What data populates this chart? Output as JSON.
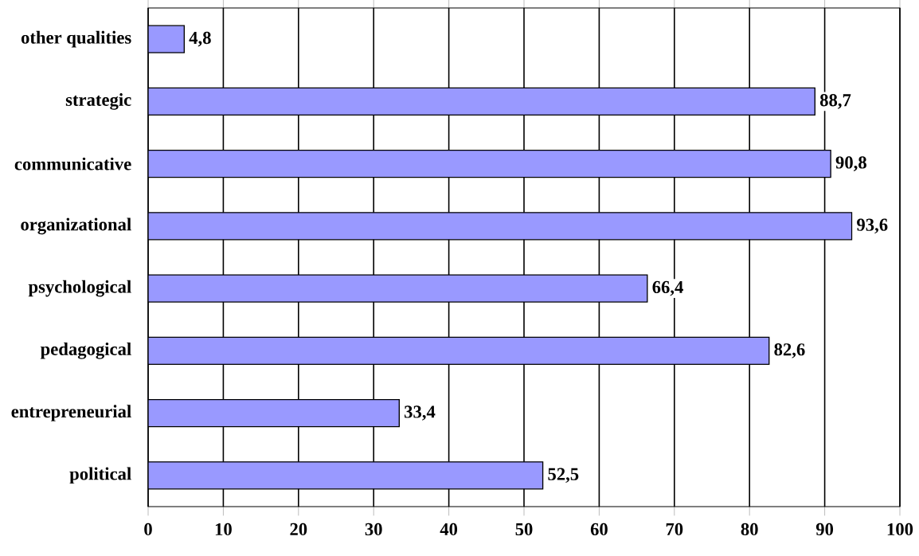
{
  "chart_data": {
    "type": "bar",
    "orientation": "horizontal",
    "categories": [
      "other qualities",
      "strategic",
      "communicative",
      "organizational",
      "psychological",
      "pedagogical",
      "entrepreneurial",
      "political"
    ],
    "values": [
      4.8,
      88.7,
      90.8,
      93.6,
      66.4,
      82.6,
      33.4,
      52.5
    ],
    "value_labels": [
      "4,8",
      "88,7",
      "90,8",
      "93,6",
      "66,4",
      "82,6",
      "33,4",
      "52,5"
    ],
    "color": "#9999ff",
    "xlim": [
      0,
      100
    ],
    "xticks": [
      0,
      10,
      20,
      30,
      40,
      50,
      60,
      70,
      80,
      90,
      100
    ],
    "grid": "x"
  }
}
